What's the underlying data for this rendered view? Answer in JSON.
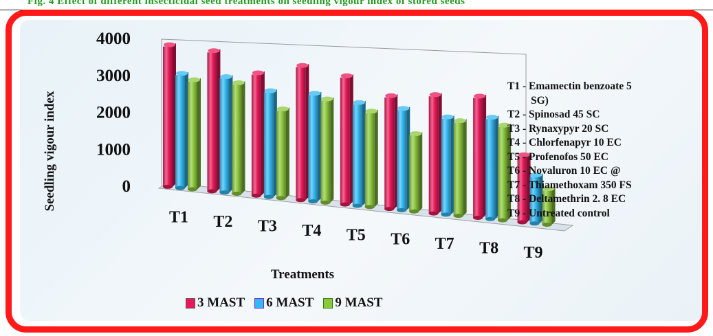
{
  "caption": "Fig. 4 Effect of different insecticidal seed treatments on seedling vigour index of stored seeds",
  "chart_data": {
    "type": "bar",
    "ylabel": "Seedling vigour index",
    "xlabel": "Treatments",
    "ylim": [
      0,
      4000
    ],
    "yticks": [
      "0",
      "1000",
      "2000",
      "3000",
      "4000"
    ],
    "categories": [
      "T1",
      "T2",
      "T3",
      "T4",
      "T5",
      "T6",
      "T7",
      "T8",
      "T9"
    ],
    "series": [
      {
        "name": "3 MAST",
        "color": "#e8195a",
        "values": [
          3800,
          3760,
          3280,
          3600,
          3440,
          3020,
          3170,
          3250,
          1780
        ]
      },
      {
        "name": "6 MAST",
        "color": "#33b8f2",
        "values": [
          3060,
          3090,
          2830,
          2880,
          2750,
          2710,
          2600,
          2710,
          1270
        ]
      },
      {
        "name": "9 MAST",
        "color": "#8cc83c",
        "values": [
          2920,
          2960,
          2370,
          2760,
          2550,
          2060,
          2530,
          2530,
          930
        ]
      }
    ],
    "grid": false,
    "legend": "bottom"
  },
  "treatments_legend": [
    "T1 -  Emamectin benzoate 5",
    "SG)",
    "T2 - Spinosad  45 SC",
    "T3 - Rynaxypyr  20 SC",
    "T4 - Chlorfenapyr  10 EC",
    "T5 - Profenofos 50 EC",
    "T6 - Novaluron  10 EC @",
    "T7 - Thiamethoxam 350 FS",
    "T8 - Deltamethrin 2. 8 EC",
    "T9 - Untreated control"
  ]
}
